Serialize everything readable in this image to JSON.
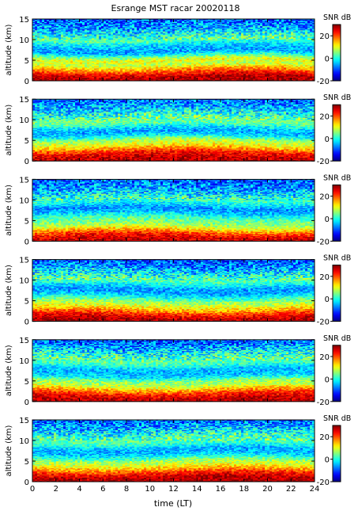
{
  "figure": {
    "title": "Esrange MST racar 20020118"
  },
  "chart_data": {
    "type": "heatmap",
    "title": "Esrange MST racar 20020118",
    "xlabel": "time (LT)",
    "ylabel": "altitude (km)",
    "xlim": [
      0,
      24
    ],
    "ylim": [
      0,
      15
    ],
    "x_ticks": [
      "0",
      "2",
      "4",
      "6",
      "8",
      "10",
      "12",
      "14",
      "16",
      "18",
      "20",
      "22",
      "24"
    ],
    "y_ticks": [
      "0",
      "5",
      "10",
      "15"
    ],
    "colorbar": {
      "label": "SNR dB",
      "range": [
        -20,
        30
      ],
      "ticks": [
        "20",
        "0",
        "-20"
      ],
      "colormap": "jet"
    },
    "panel_count": 6,
    "panel_profiles": [
      {
        "altitude_km": [
          0,
          1,
          2,
          3,
          4,
          5,
          6,
          7,
          8,
          9,
          10,
          11,
          12,
          13,
          14,
          15
        ],
        "snr_db": [
          28,
          27,
          22,
          15,
          8,
          11,
          3,
          -6,
          -5,
          -2,
          4,
          0,
          -3,
          -6,
          -8,
          -10
        ]
      },
      {
        "altitude_km": [
          0,
          1,
          2,
          3,
          4,
          5,
          6,
          7,
          8,
          9,
          10,
          11,
          12,
          13,
          14,
          15
        ],
        "snr_db": [
          27,
          26,
          23,
          16,
          10,
          7,
          -2,
          -6,
          -3,
          3,
          5,
          1,
          -2,
          -5,
          -7,
          -9
        ]
      },
      {
        "altitude_km": [
          0,
          1,
          2,
          3,
          4,
          5,
          6,
          7,
          8,
          9,
          10,
          11,
          12,
          13,
          14,
          15
        ],
        "snr_db": [
          26,
          25,
          20,
          12,
          6,
          4,
          0,
          -5,
          -7,
          -2,
          2,
          -1,
          -4,
          -6,
          -8,
          -10
        ]
      },
      {
        "altitude_km": [
          0,
          1,
          2,
          3,
          4,
          5,
          6,
          7,
          8,
          9,
          10,
          11,
          12,
          13,
          14,
          15
        ],
        "snr_db": [
          28,
          26,
          21,
          14,
          9,
          5,
          -1,
          -6,
          -6,
          -1,
          3,
          0,
          -3,
          -6,
          -8,
          -10
        ]
      },
      {
        "altitude_km": [
          0,
          1,
          2,
          3,
          4,
          5,
          6,
          7,
          8,
          9,
          10,
          11,
          12,
          13,
          14,
          15
        ],
        "snr_db": [
          27,
          26,
          22,
          15,
          8,
          6,
          -2,
          -5,
          -4,
          1,
          4,
          1,
          -2,
          -5,
          -8,
          -10
        ]
      },
      {
        "altitude_km": [
          0,
          1,
          2,
          3,
          4,
          5,
          6,
          7,
          8,
          9,
          10,
          11,
          12,
          13,
          14,
          15
        ],
        "snr_db": [
          28,
          27,
          23,
          16,
          10,
          7,
          0,
          -5,
          -5,
          0,
          4,
          1,
          -2,
          -5,
          -7,
          -9
        ]
      }
    ]
  }
}
